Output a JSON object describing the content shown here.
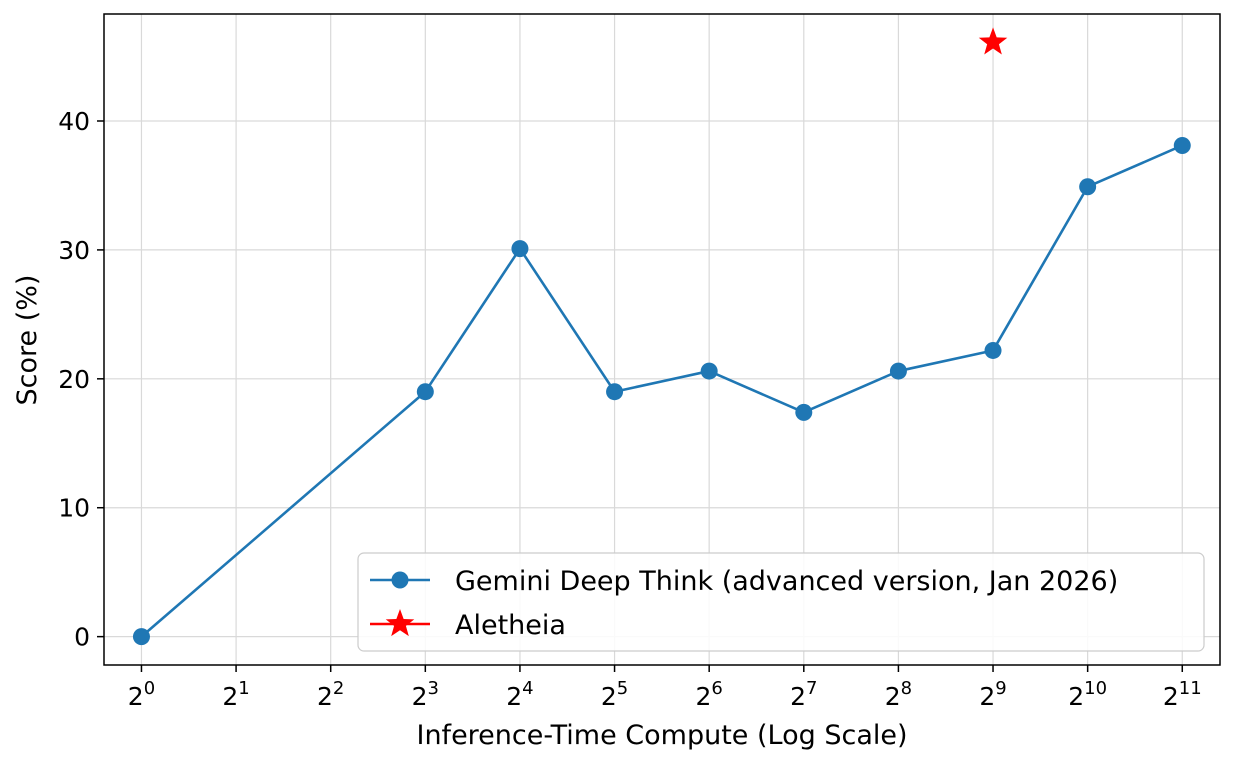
{
  "chart_data": {
    "type": "line",
    "title": "",
    "xlabel": "Inference-Time Compute (Log Scale)",
    "ylabel": "Score (%)",
    "x_scale": "log2",
    "x_ticks": [
      {
        "base": "2",
        "exp": "0",
        "value": 1
      },
      {
        "base": "2",
        "exp": "1",
        "value": 2
      },
      {
        "base": "2",
        "exp": "2",
        "value": 4
      },
      {
        "base": "2",
        "exp": "3",
        "value": 8
      },
      {
        "base": "2",
        "exp": "4",
        "value": 16
      },
      {
        "base": "2",
        "exp": "5",
        "value": 32
      },
      {
        "base": "2",
        "exp": "6",
        "value": 64
      },
      {
        "base": "2",
        "exp": "7",
        "value": 128
      },
      {
        "base": "2",
        "exp": "8",
        "value": 256
      },
      {
        "base": "2",
        "exp": "9",
        "value": 512
      },
      {
        "base": "2",
        "exp": "10",
        "value": 1024
      },
      {
        "base": "2",
        "exp": "11",
        "value": 2048
      }
    ],
    "y_ticks": [
      "0",
      "10",
      "20",
      "30",
      "40"
    ],
    "ylim": [
      -2.2,
      48.3
    ],
    "xlim": [
      0.76,
      2700
    ],
    "grid": true,
    "legend_position": "bottom-right",
    "series": [
      {
        "name": "Gemini Deep Think (advanced version, Jan 2026)",
        "color": "#1f77b4",
        "marker": "circle",
        "x": [
          1,
          8,
          16,
          32,
          64,
          128,
          256,
          512,
          1024,
          2048
        ],
        "y": [
          0.0,
          19.0,
          30.1,
          19.0,
          20.6,
          17.4,
          20.6,
          22.2,
          34.9,
          38.1
        ]
      },
      {
        "name": "Aletheia",
        "color": "#ff0000",
        "marker": "star",
        "x": [
          512
        ],
        "y": [
          46.1
        ]
      }
    ]
  }
}
